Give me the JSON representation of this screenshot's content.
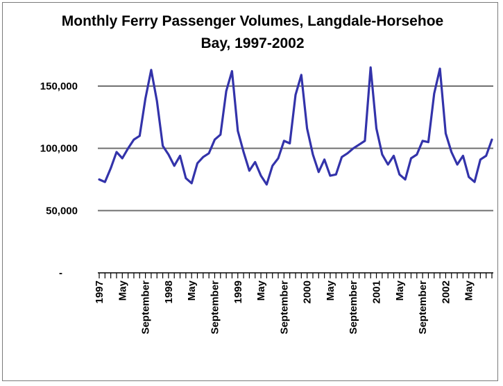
{
  "chart_data": {
    "type": "line",
    "title_lines": [
      "Monthly Ferry Passenger Volumes, Langdale-Horsehoe",
      "Bay, 1997-2002"
    ],
    "xlabel": "",
    "ylabel": "",
    "ylim": [
      0,
      170000
    ],
    "yticks": [
      {
        "value": 150000,
        "label": "150,000"
      },
      {
        "value": 100000,
        "label": "100,000"
      },
      {
        "value": 50000,
        "label": "50,000"
      },
      {
        "value": 0,
        "label": "-"
      }
    ],
    "grid": true,
    "legend": "none",
    "colors": {
      "series": "#3333aa",
      "grid": "#707070"
    },
    "x_tick_labels": [
      {
        "month": 0,
        "label": "1997"
      },
      {
        "month": 4,
        "label": "May"
      },
      {
        "month": 8,
        "label": "September"
      },
      {
        "month": 12,
        "label": "1998"
      },
      {
        "month": 16,
        "label": "May"
      },
      {
        "month": 20,
        "label": "September"
      },
      {
        "month": 24,
        "label": "1999"
      },
      {
        "month": 28,
        "label": "May"
      },
      {
        "month": 32,
        "label": "September"
      },
      {
        "month": 36,
        "label": "2000"
      },
      {
        "month": 40,
        "label": "May"
      },
      {
        "month": 44,
        "label": "September"
      },
      {
        "month": 48,
        "label": "2001"
      },
      {
        "month": 52,
        "label": "May"
      },
      {
        "month": 56,
        "label": "September"
      },
      {
        "month": 60,
        "label": "2002"
      },
      {
        "month": 64,
        "label": "May"
      }
    ],
    "series": [
      {
        "values": [
          75000,
          73000,
          84000,
          97000,
          92000,
          100000,
          107000,
          110000,
          140000,
          163000,
          138000,
          102000,
          95000,
          86000,
          94000,
          76000,
          72000,
          88000,
          93000,
          96000,
          107000,
          111000,
          146000,
          162000,
          114000,
          97000,
          82000,
          89000,
          78000,
          71000,
          86000,
          92000,
          106000,
          104000,
          143000,
          159000,
          116000,
          95000,
          81000,
          91000,
          78000,
          79000,
          93000,
          96000,
          100000,
          103000,
          106000,
          165000,
          116000,
          95000,
          87000,
          94000,
          79000,
          75000,
          92000,
          95000,
          106000,
          105000,
          144000,
          164000,
          112000,
          97000,
          87000,
          94000,
          77000,
          73000,
          91000,
          94000,
          107000
        ]
      }
    ]
  }
}
